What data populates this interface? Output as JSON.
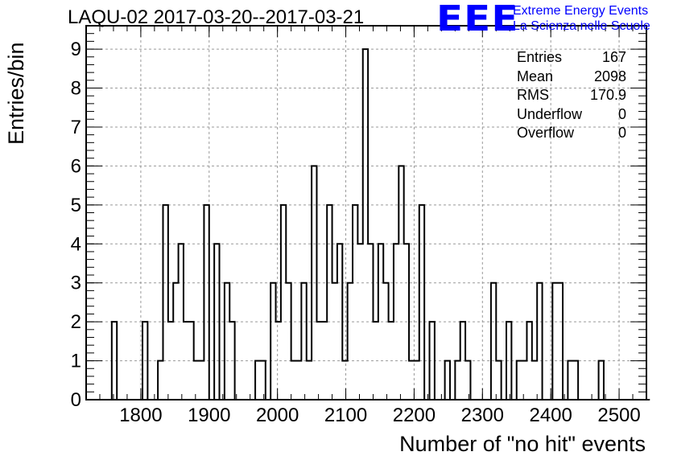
{
  "header": {
    "title": "LAQU-02 2017-03-20--2017-03-21",
    "logo_mark": "EEE",
    "logo_line1": "Extreme Energy Events",
    "logo_line2": "La Scienza nelle Scuole"
  },
  "stats_box": [
    {
      "label": "Entries",
      "value": "167"
    },
    {
      "label": "Mean",
      "value": "2098"
    },
    {
      "label": "RMS",
      "value": "170.9"
    },
    {
      "label": "Underflow",
      "value": "0"
    },
    {
      "label": "Overflow",
      "value": "0"
    }
  ],
  "chart_data": {
    "type": "bar",
    "title": "LAQU-02 2017-03-20--2017-03-21",
    "xlabel": "Number of \"no hit\" events",
    "ylabel": "Entries/bin",
    "xlim": [
      1720,
      2540
    ],
    "ylim": [
      0,
      9.6
    ],
    "x_ticks": [
      1800,
      1900,
      2000,
      2100,
      2200,
      2300,
      2400,
      2500
    ],
    "y_ticks": [
      0,
      1,
      2,
      3,
      4,
      5,
      6,
      7,
      8,
      9
    ],
    "grid": true,
    "bin_start": 1720,
    "bin_width": 7.5,
    "values": [
      0,
      0,
      0,
      0,
      0,
      2,
      0,
      0,
      0,
      0,
      0,
      2,
      0,
      0,
      1,
      5,
      2,
      3,
      4,
      2,
      2,
      1,
      1,
      5,
      0,
      4,
      0,
      3,
      2,
      0,
      0,
      0,
      0,
      1,
      1,
      0,
      3,
      2,
      5,
      3,
      1,
      1,
      3,
      1,
      6,
      2,
      2,
      5,
      3,
      4,
      1,
      3,
      5,
      4,
      9,
      4,
      2,
      4,
      3,
      2,
      4,
      6,
      4,
      1,
      1,
      5,
      0,
      2,
      0,
      0,
      1,
      0,
      1,
      2,
      1,
      0,
      0,
      0,
      0,
      3,
      1,
      0,
      2,
      0,
      1,
      1,
      2,
      1,
      3,
      0,
      0,
      3,
      3,
      0,
      1,
      1,
      0,
      0,
      0,
      0,
      1,
      0,
      0,
      0,
      0,
      0,
      0,
      0,
      0,
      0
    ],
    "legend": "none",
    "stats_placement": "top-right"
  }
}
